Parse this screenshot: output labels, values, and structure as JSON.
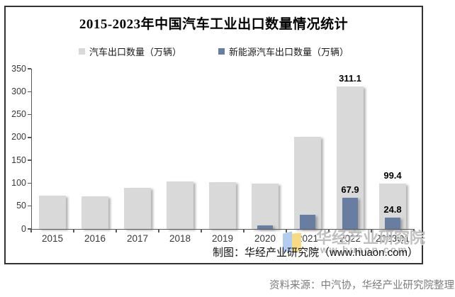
{
  "chart_data": {
    "type": "bar",
    "title": "2015-2023年中国汽车工业出口数量情况统计",
    "categories": [
      "2015",
      "2016",
      "2017",
      "2018",
      "2019",
      "2020",
      "2021",
      "2022",
      "2023Q1"
    ],
    "series": [
      {
        "name": "汽车出口数量（万辆）",
        "slug": "auto",
        "color": "#d9d9d9",
        "values": [
          72.8,
          70.8,
          89.1,
          104.1,
          102.4,
          99.5,
          201.5,
          311.1,
          99.4
        ]
      },
      {
        "name": "新能源汽车出口数量（万辆）",
        "slug": "nev",
        "color": "#677da1",
        "values": [
          null,
          null,
          null,
          null,
          null,
          7.0,
          31.0,
          67.9,
          24.8
        ]
      }
    ],
    "labeled_categories": [
      "2022",
      "2023Q1"
    ],
    "visible_data_labels": [
      "311.1",
      "67.9",
      "99.4",
      "24.8"
    ],
    "ylim": [
      0,
      350
    ],
    "ytick_step": 50,
    "grid": false,
    "legend_position": "top-center"
  },
  "watermark": {
    "logo": "huaon-logo",
    "brand": "华经产业研究院",
    "url": "www.huaon.com"
  },
  "credit_line": "制图：华经产业研究院（www.huaon.com）",
  "source_line": "资料来源：中汽协，华经产业研究院整理",
  "colors": {
    "bar_gray": "#d9d9d9",
    "bar_blue": "#677da1",
    "axis": "#595959",
    "panel_border": "#333333",
    "source_text": "#7d7d7d",
    "watermark_gray": "#8a8a8a"
  }
}
